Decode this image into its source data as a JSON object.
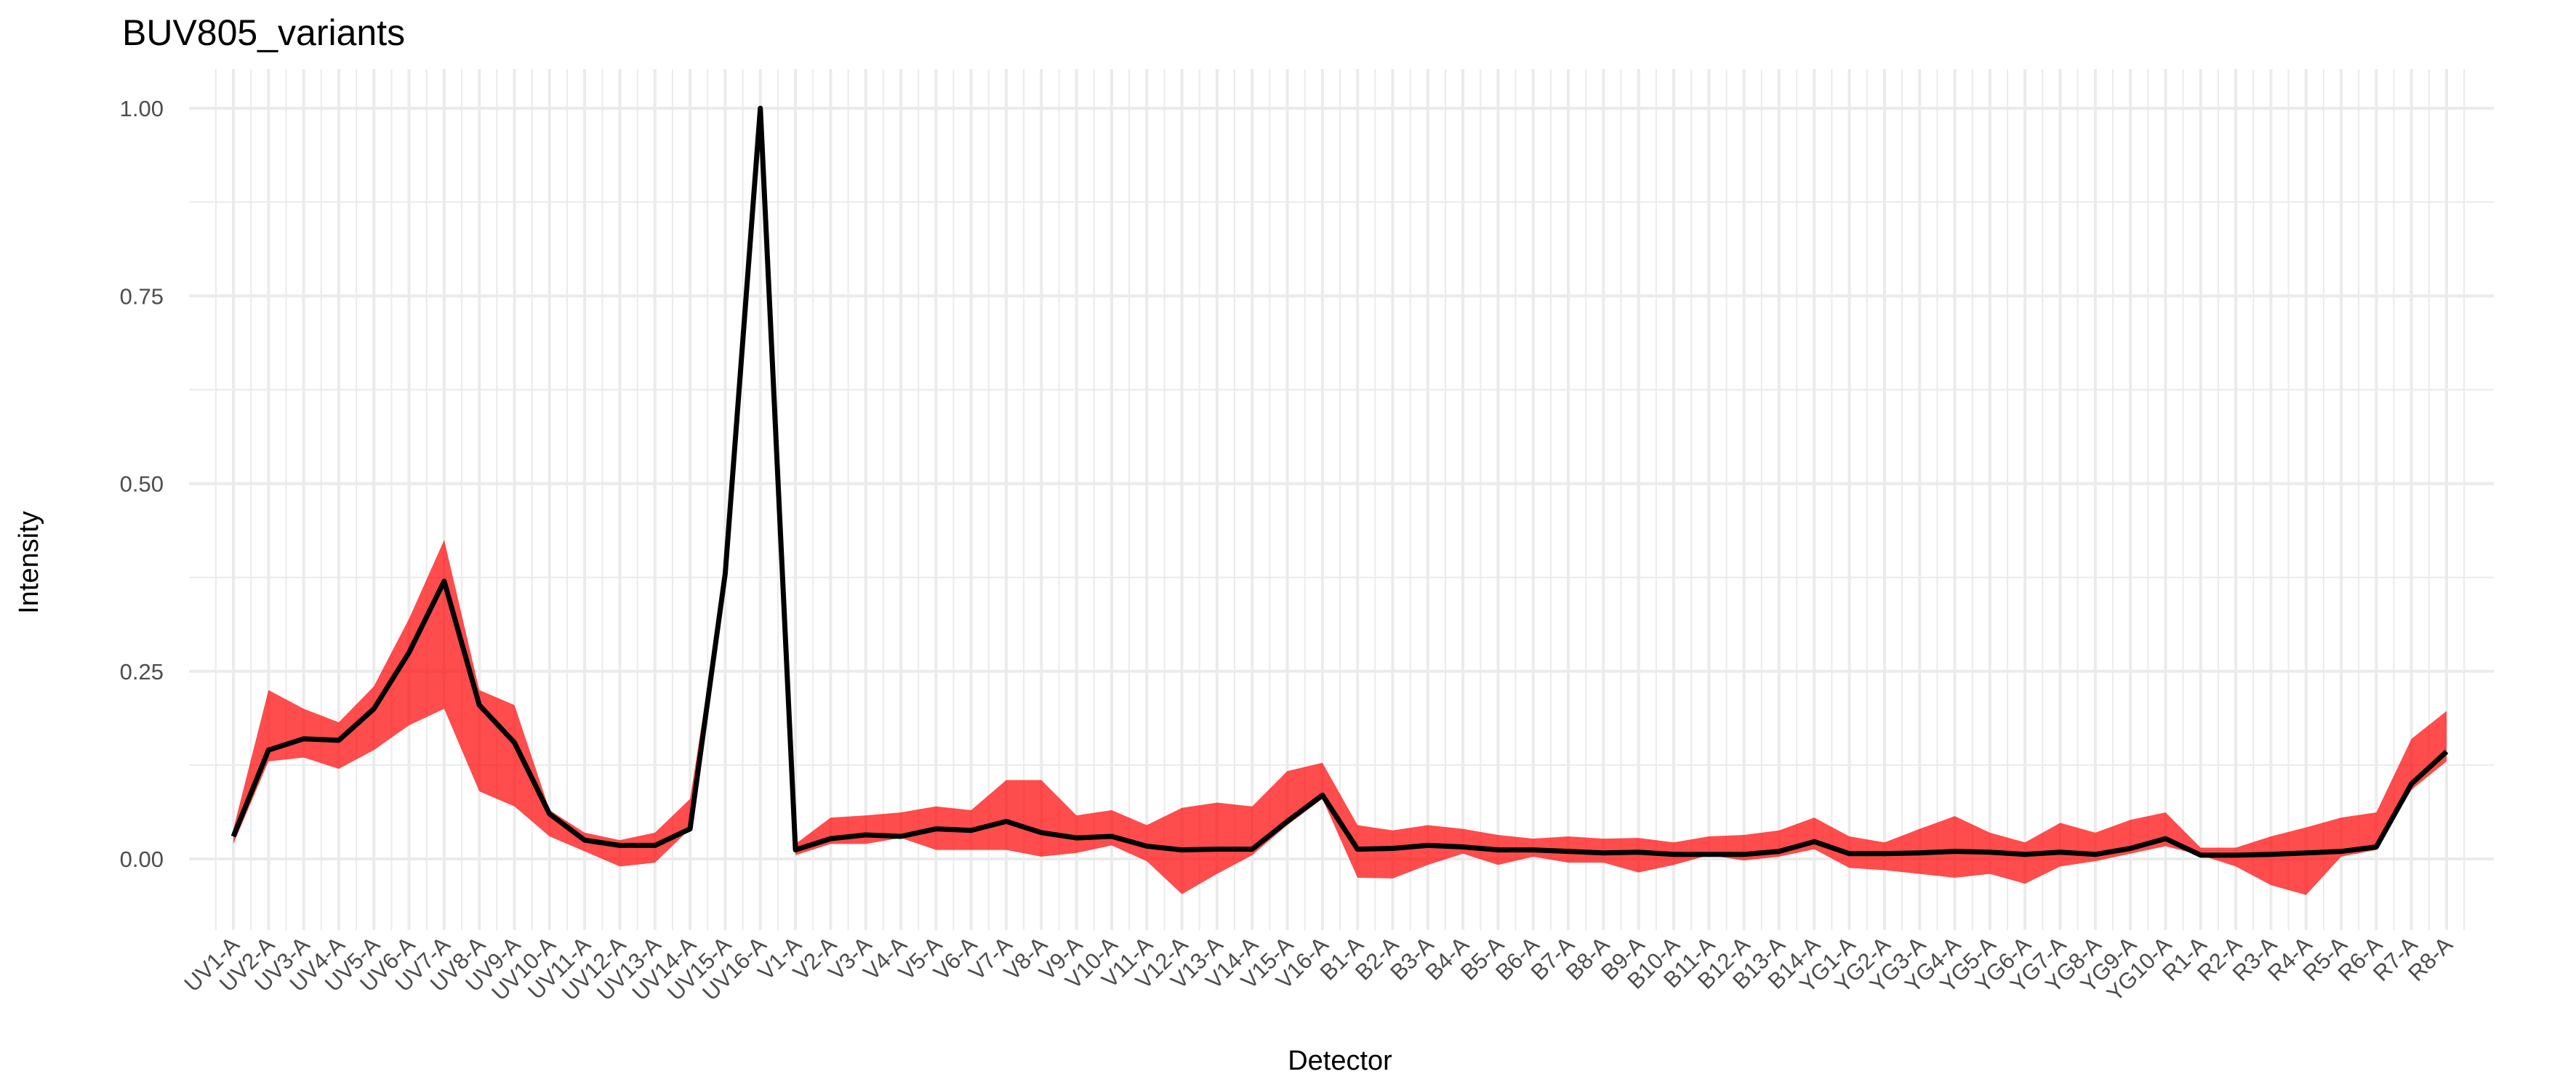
{
  "chart_data": {
    "type": "area",
    "title": "BUV805_variants",
    "xlabel": "Detector",
    "ylabel": "Intensity",
    "ylim": [
      -0.095,
      1.05
    ],
    "yticks": [
      0.0,
      0.25,
      0.5,
      0.75,
      1.0
    ],
    "ytick_labels": [
      "0.00",
      "0.25",
      "0.50",
      "0.75",
      "1.00"
    ],
    "grid": true,
    "colors": {
      "ribbon": "#FF0000",
      "ribbon_opacity": 0.7,
      "line": "#000000",
      "grid": "#EBEBEB"
    },
    "categories": [
      "UV1-A",
      "UV2-A",
      "UV3-A",
      "UV4-A",
      "UV5-A",
      "UV6-A",
      "UV7-A",
      "UV8-A",
      "UV9-A",
      "UV10-A",
      "UV11-A",
      "UV12-A",
      "UV13-A",
      "UV14-A",
      "UV15-A",
      "UV16-A",
      "V1-A",
      "V2-A",
      "V3-A",
      "V4-A",
      "V5-A",
      "V6-A",
      "V7-A",
      "V8-A",
      "V9-A",
      "V10-A",
      "V11-A",
      "V12-A",
      "V13-A",
      "V14-A",
      "V15-A",
      "V16-A",
      "B1-A",
      "B2-A",
      "B3-A",
      "B4-A",
      "B5-A",
      "B6-A",
      "B7-A",
      "B8-A",
      "B9-A",
      "B10-A",
      "B11-A",
      "B12-A",
      "B13-A",
      "B14-A",
      "YG1-A",
      "YG2-A",
      "YG3-A",
      "YG4-A",
      "YG5-A",
      "YG6-A",
      "YG7-A",
      "YG8-A",
      "YG9-A",
      "YG10-A",
      "R1-A",
      "R2-A",
      "R3-A",
      "R4-A",
      "R5-A",
      "R6-A",
      "R7-A",
      "R8-A"
    ],
    "series": [
      {
        "role": "line",
        "values": [
          0.03,
          0.145,
          0.16,
          0.158,
          0.2,
          0.275,
          0.37,
          0.205,
          0.155,
          0.06,
          0.025,
          0.018,
          0.018,
          0.04,
          0.38,
          1.0,
          0.012,
          0.027,
          0.032,
          0.03,
          0.04,
          0.038,
          0.05,
          0.035,
          0.028,
          0.03,
          0.017,
          0.012,
          0.013,
          0.013,
          0.05,
          0.085,
          0.013,
          0.014,
          0.018,
          0.016,
          0.012,
          0.012,
          0.01,
          0.008,
          0.009,
          0.006,
          0.006,
          0.006,
          0.01,
          0.023,
          0.007,
          0.007,
          0.008,
          0.01,
          0.009,
          0.006,
          0.009,
          0.006,
          0.014,
          0.027,
          0.005,
          0.005,
          0.006,
          0.008,
          0.01,
          0.016,
          0.1,
          0.143
        ]
      },
      {
        "role": "ribbon-min",
        "values": [
          0.02,
          0.13,
          0.135,
          0.12,
          0.145,
          0.178,
          0.2,
          0.09,
          0.07,
          0.03,
          0.01,
          -0.01,
          -0.005,
          0.04,
          0.38,
          1.0,
          0.005,
          0.02,
          0.02,
          0.028,
          0.012,
          0.012,
          0.012,
          0.003,
          0.008,
          0.018,
          -0.003,
          -0.047,
          -0.02,
          0.005,
          0.045,
          0.08,
          -0.025,
          -0.026,
          -0.008,
          0.007,
          -0.008,
          0.003,
          -0.005,
          -0.005,
          -0.018,
          -0.008,
          0.005,
          -0.002,
          0.003,
          0.013,
          -0.012,
          -0.015,
          -0.02,
          -0.025,
          -0.02,
          -0.033,
          -0.01,
          -0.003,
          0.007,
          0.017,
          0.005,
          -0.01,
          -0.035,
          -0.048,
          0.003,
          0.012,
          0.092,
          0.13
        ]
      },
      {
        "role": "ribbon-max",
        "values": [
          0.04,
          0.225,
          0.2,
          0.182,
          0.23,
          0.32,
          0.425,
          0.225,
          0.205,
          0.065,
          0.035,
          0.025,
          0.035,
          0.08,
          0.38,
          1.0,
          0.02,
          0.055,
          0.058,
          0.062,
          0.07,
          0.065,
          0.105,
          0.105,
          0.058,
          0.065,
          0.045,
          0.068,
          0.075,
          0.07,
          0.117,
          0.128,
          0.045,
          0.038,
          0.045,
          0.04,
          0.032,
          0.027,
          0.03,
          0.027,
          0.028,
          0.022,
          0.03,
          0.032,
          0.038,
          0.055,
          0.03,
          0.022,
          0.04,
          0.057,
          0.035,
          0.022,
          0.048,
          0.035,
          0.052,
          0.062,
          0.015,
          0.015,
          0.03,
          0.042,
          0.055,
          0.062,
          0.16,
          0.197
        ]
      }
    ]
  }
}
